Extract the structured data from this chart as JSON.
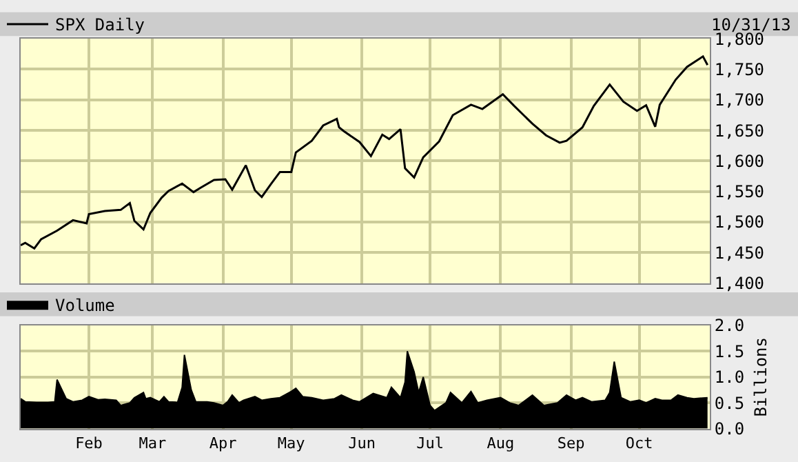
{
  "chart_data": [
    {
      "type": "line",
      "tick_labels": "y",
      "grid": true,
      "legend": "top left",
      "annotations": [
        "10/31/13"
      ],
      "xlim": [
        "--01-02",
        "--11-01"
      ],
      "xticks": [
        {
          "value": "--02-01",
          "label": null
        },
        {
          "value": "--03-01",
          "label": null
        },
        {
          "value": "--04-01",
          "label": null
        },
        {
          "value": "--05-01",
          "label": null
        },
        {
          "value": "--06-01",
          "label": null
        },
        {
          "value": "--07-01",
          "label": null
        },
        {
          "value": "--08-01",
          "label": null
        },
        {
          "value": "--09-01",
          "label": null
        },
        {
          "value": "--10-01",
          "label": null
        }
      ],
      "ylim": [
        1400,
        1800
      ],
      "yticks": [
        {
          "value": 1400,
          "label": "1,400"
        },
        {
          "value": 1450,
          "label": "1,450"
        },
        {
          "value": 1500,
          "label": "1,500"
        },
        {
          "value": 1550,
          "label": "1,550"
        },
        {
          "value": 1600,
          "label": "1,600"
        },
        {
          "value": 1650,
          "label": "1,650"
        },
        {
          "value": 1700,
          "label": "1,700"
        },
        {
          "value": 1750,
          "label": "1,750"
        },
        {
          "value": 1800,
          "label": "1,800"
        }
      ],
      "series": [
        {
          "name": "SPX Daily",
          "color": "#000000",
          "x": [
            "--01-02",
            "--01-04",
            "--01-08",
            "--01-11",
            "--01-18",
            "--01-25",
            "--01-31",
            "--02-01",
            "--02-08",
            "--02-15",
            "--02-19",
            "--02-21",
            "--02-25",
            "--02-28",
            "--03-05",
            "--03-08",
            "--03-14",
            "--03-19",
            "--03-22",
            "--03-28",
            "--04-02",
            "--04-05",
            "--04-11",
            "--04-15",
            "--04-18",
            "--04-22",
            "--04-26",
            "--05-01",
            "--05-03",
            "--05-10",
            "--05-15",
            "--05-21",
            "--05-22",
            "--05-24",
            "--05-31",
            "--06-05",
            "--06-10",
            "--06-13",
            "--06-18",
            "--06-20",
            "--06-24",
            "--06-28",
            "--07-05",
            "--07-11",
            "--07-19",
            "--07-24",
            "--08-02",
            "--08-07",
            "--08-15",
            "--08-21",
            "--08-27",
            "--08-30",
            "--09-06",
            "--09-11",
            "--09-18",
            "--09-24",
            "--09-30",
            "--10-04",
            "--10-08",
            "--10-10",
            "--10-17",
            "--10-22",
            "--10-29",
            "--10-31"
          ],
          "values": [
            1462,
            1466,
            1457,
            1472,
            1486,
            1503,
            1498,
            1513,
            1518,
            1520,
            1531,
            1502,
            1488,
            1515,
            1540,
            1551,
            1563,
            1549,
            1556,
            1569,
            1570,
            1553,
            1593,
            1552,
            1541,
            1562,
            1582,
            1582,
            1614,
            1633,
            1658,
            1669,
            1655,
            1649,
            1631,
            1608,
            1643,
            1636,
            1652,
            1588,
            1573,
            1606,
            1632,
            1675,
            1692,
            1685,
            1709,
            1690,
            1661,
            1642,
            1630,
            1633,
            1655,
            1690,
            1725,
            1697,
            1682,
            1691,
            1656,
            1692,
            1733,
            1754,
            1771,
            1757
          ]
        }
      ]
    },
    {
      "type": "area",
      "ylabel": "Billions",
      "grid": true,
      "legend": "top left",
      "xlim": [
        "--01-02",
        "--11-01"
      ],
      "xticks": [
        {
          "value": "--02-01",
          "label": "Feb"
        },
        {
          "value": "--03-01",
          "label": "Mar"
        },
        {
          "value": "--04-01",
          "label": "Apr"
        },
        {
          "value": "--05-01",
          "label": "May"
        },
        {
          "value": "--06-01",
          "label": "Jun"
        },
        {
          "value": "--07-01",
          "label": "Jul"
        },
        {
          "value": "--08-01",
          "label": "Aug"
        },
        {
          "value": "--09-01",
          "label": "Sep"
        },
        {
          "value": "--10-01",
          "label": "Oct"
        }
      ],
      "ylim": [
        0,
        2
      ],
      "yticks": [
        {
          "value": 0,
          "label": "0.0"
        },
        {
          "value": 0.5,
          "label": "0.5"
        },
        {
          "value": 1,
          "label": "1.0"
        },
        {
          "value": 1.5,
          "label": "1.5"
        },
        {
          "value": 2,
          "label": "2.0"
        }
      ],
      "series": [
        {
          "name": "Volume",
          "color": "#000000",
          "x": [
            "--01-02",
            "--01-04",
            "--01-09",
            "--01-14",
            "--01-17",
            "--01-18",
            "--01-22",
            "--01-25",
            "--01-29",
            "--02-01",
            "--02-05",
            "--02-08",
            "--02-13",
            "--02-15",
            "--02-19",
            "--02-21",
            "--02-25",
            "--02-26",
            "--02-28",
            "--03-04",
            "--03-06",
            "--03-08",
            "--03-12",
            "--03-14",
            "--03-15",
            "--03-18",
            "--03-20",
            "--03-25",
            "--03-28",
            "--04-01",
            "--04-03",
            "--04-05",
            "--04-08",
            "--04-10",
            "--04-15",
            "--04-18",
            "--04-22",
            "--04-26",
            "--05-01",
            "--05-03",
            "--05-06",
            "--05-10",
            "--05-15",
            "--05-20",
            "--05-23",
            "--05-28",
            "--05-31",
            "--06-03",
            "--06-06",
            "--06-12",
            "--06-14",
            "--06-18",
            "--06-20",
            "--06-21",
            "--06-24",
            "--06-26",
            "--06-28",
            "--07-01",
            "--07-03",
            "--07-08",
            "--07-10",
            "--07-15",
            "--07-19",
            "--07-22",
            "--07-26",
            "--08-01",
            "--08-05",
            "--08-09",
            "--08-15",
            "--08-20",
            "--08-26",
            "--08-30",
            "--09-03",
            "--09-06",
            "--09-10",
            "--09-16",
            "--09-18",
            "--09-20",
            "--09-23",
            "--09-27",
            "--10-01",
            "--10-04",
            "--10-08",
            "--10-11",
            "--10-15",
            "--10-18",
            "--10-22",
            "--10-25",
            "--10-31"
          ],
          "values": [
            0.58,
            0.52,
            0.51,
            0.51,
            0.52,
            0.95,
            0.58,
            0.52,
            0.55,
            0.62,
            0.56,
            0.57,
            0.55,
            0.45,
            0.5,
            0.6,
            0.7,
            0.58,
            0.6,
            0.52,
            0.62,
            0.52,
            0.51,
            0.8,
            1.43,
            0.75,
            0.52,
            0.52,
            0.5,
            0.45,
            0.52,
            0.65,
            0.5,
            0.55,
            0.62,
            0.55,
            0.58,
            0.6,
            0.72,
            0.78,
            0.62,
            0.6,
            0.55,
            0.58,
            0.65,
            0.55,
            0.52,
            0.6,
            0.68,
            0.6,
            0.8,
            0.6,
            0.9,
            1.5,
            1.1,
            0.7,
            1.0,
            0.45,
            0.35,
            0.5,
            0.7,
            0.5,
            0.72,
            0.5,
            0.55,
            0.6,
            0.5,
            0.45,
            0.65,
            0.45,
            0.5,
            0.65,
            0.55,
            0.6,
            0.52,
            0.55,
            0.7,
            1.3,
            0.6,
            0.52,
            0.55,
            0.5,
            0.58,
            0.55,
            0.55,
            0.65,
            0.6,
            0.58,
            0.6
          ]
        }
      ]
    }
  ]
}
